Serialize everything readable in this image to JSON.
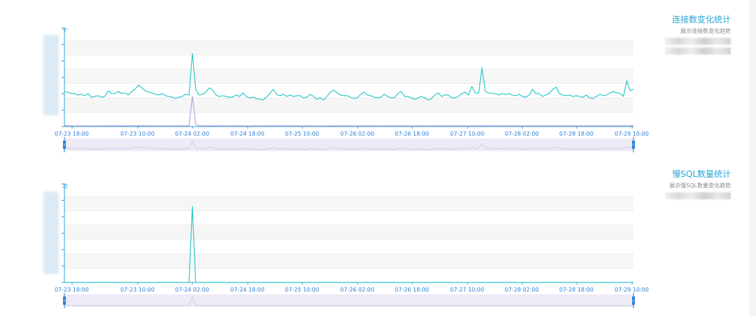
{
  "panels": [
    {
      "legend": {
        "title": "连接数变化统计",
        "subtitle": "展示连接数变化趋势"
      },
      "unit": "个",
      "series_colors": [
        "#2ec7c9",
        "#b6a2de"
      ],
      "x_tick_labels": [
        "07-23 18:00",
        "07-23 10:00",
        "07-24 02:00",
        "07-24 18:00",
        "07-25 10:00",
        "07-26 02:00",
        "07-26 18:00",
        "07-27 10:00",
        "07-28 02:00",
        "07-28 18:00",
        "07-29 10:00"
      ]
    },
    {
      "legend": {
        "title": "慢SQL数量统计",
        "subtitle": "展示慢SQL数量变化趋势"
      },
      "unit": "次",
      "series_colors": [
        "#2ec7c9"
      ],
      "x_tick_labels": [
        "07-23 18:00",
        "07-23 10:00",
        "07-24 02:00",
        "07-24 18:00",
        "07-25 10:00",
        "07-26 02:00",
        "07-26 18:00",
        "07-27 10:00",
        "07-28 02:00",
        "07-28 18:00",
        "07-29 10:00"
      ]
    }
  ],
  "chart_data": [
    {
      "type": "line",
      "title": "连接数变化统计",
      "ylabel": "个",
      "x_ticks": [
        "07-23 18:00",
        "07-23 10:00",
        "07-24 02:00",
        "07-24 18:00",
        "07-25 10:00",
        "07-26 02:00",
        "07-26 18:00",
        "07-27 10:00",
        "07-28 02:00",
        "07-28 18:00",
        "07-29 10:00"
      ],
      "ylim": [
        0,
        6
      ],
      "grid": true,
      "series": [
        {
          "values": [
            2.45,
            2.4,
            2.3,
            2.3,
            2.2,
            2.25,
            2.15,
            2.3,
            2.05,
            2.1,
            2.15,
            2.05,
            2.1,
            2.5,
            2.3,
            2.3,
            2.45,
            2.3,
            2.35,
            2.2,
            2.45,
            2.6,
            2.9,
            2.7,
            2.5,
            2.4,
            2.35,
            2.25,
            2.2,
            2.3,
            2.15,
            2.1,
            2.05,
            1.95,
            2.05,
            2.1,
            2.25,
            2.2,
            5.1,
            2.6,
            2.2,
            2.25,
            2.4,
            2.7,
            2.55,
            2.2,
            2.1,
            2.15,
            2.1,
            2.05,
            2.05,
            2.2,
            2.1,
            2.35,
            2.1,
            2.0,
            2.05,
            1.95,
            1.9,
            1.85,
            2.05,
            2.3,
            2.6,
            2.25,
            2.15,
            2.25,
            2.1,
            2.2,
            2.1,
            2.15,
            2.15,
            2.0,
            2.05,
            2.25,
            2.1,
            1.9,
            2.0,
            1.85,
            2.1,
            2.4,
            2.55,
            2.35,
            2.2,
            2.15,
            2.15,
            2.05,
            1.95,
            2.0,
            2.25,
            2.4,
            2.2,
            2.15,
            2.05,
            2.0,
            2.05,
            2.25,
            2.1,
            2.0,
            2.0,
            2.3,
            2.45,
            2.1,
            2.1,
            2.0,
            1.9,
            2.0,
            2.1,
            2.0,
            1.85,
            1.95,
            2.2,
            2.35,
            2.1,
            2.2,
            2.2,
            2.0,
            2.0,
            2.1,
            2.3,
            2.4,
            2.2,
            2.8,
            2.35,
            2.3,
            4.1,
            2.45,
            2.35,
            2.3,
            2.3,
            2.2,
            2.3,
            2.25,
            2.3,
            2.2,
            2.15,
            2.25,
            2.1,
            2.05,
            2.2,
            2.6,
            2.3,
            2.3,
            2.1,
            2.2,
            2.3,
            2.6,
            2.75,
            2.3,
            2.2,
            2.15,
            2.2,
            2.1,
            2.15,
            2.1,
            2.05,
            2.2,
            2.0,
            1.95,
            2.1,
            2.25,
            2.15,
            2.2,
            2.35,
            2.45,
            2.35,
            2.3,
            2.1,
            3.2,
            2.5,
            2.6
          ]
        },
        {
          "values": [
            0.08,
            0.05,
            0.05,
            0.04,
            0.05,
            0.04,
            0.05,
            0.05,
            0.04,
            0.05,
            0.05,
            0.04,
            0.05,
            0.05,
            0.06,
            0.05,
            0.05,
            0.05,
            0.06,
            0.05,
            0.06,
            0.06,
            0.06,
            0.05,
            0.05,
            0.05,
            0.05,
            0.05,
            0.04,
            0.05,
            0.05,
            0.04,
            0.05,
            0.05,
            0.05,
            0.05,
            0.05,
            0.06,
            2.1,
            0.15,
            0.06,
            0.05,
            0.05,
            0.05,
            0.06,
            0.05,
            0.05,
            0.05,
            0.04,
            0.05,
            0.05,
            0.05,
            0.05,
            0.05,
            0.05,
            0.04,
            0.05,
            0.05,
            0.05,
            0.04,
            0.05,
            0.05,
            0.06,
            0.05,
            0.05,
            0.05,
            0.05,
            0.05,
            0.05,
            0.05,
            0.05,
            0.04,
            0.05,
            0.05,
            0.05,
            0.04,
            0.05,
            0.04,
            0.05,
            0.05,
            0.06,
            0.05,
            0.05,
            0.05,
            0.05,
            0.05,
            0.04,
            0.05,
            0.05,
            0.05,
            0.05,
            0.05,
            0.05,
            0.04,
            0.05,
            0.05,
            0.05,
            0.05,
            0.05,
            0.05,
            0.05,
            0.05,
            0.05,
            0.05,
            0.04,
            0.05,
            0.05,
            0.05,
            0.04,
            0.05,
            0.05,
            0.05,
            0.05,
            0.05,
            0.05,
            0.05,
            0.05,
            0.05,
            0.05,
            0.05,
            0.05,
            0.05,
            0.05,
            0.05,
            0.06,
            0.05,
            0.05,
            0.05,
            0.05,
            0.05,
            0.05,
            0.05,
            0.05,
            0.05,
            0.05,
            0.05,
            0.05,
            0.05,
            0.05,
            0.05,
            0.05,
            0.05,
            0.05,
            0.05,
            0.05,
            0.05,
            0.05,
            0.05,
            0.05,
            0.05,
            0.05,
            0.05,
            0.05,
            0.05,
            0.05,
            0.05,
            0.05,
            0.05,
            0.05,
            0.05,
            0.05,
            0.05,
            0.05,
            0.05,
            0.05,
            0.05,
            0.05,
            0.05,
            0.05,
            0.05
          ]
        }
      ]
    },
    {
      "type": "line",
      "title": "慢SQL数量统计",
      "ylabel": "次",
      "x_ticks": [
        "07-23 18:00",
        "07-23 10:00",
        "07-24 02:00",
        "07-24 18:00",
        "07-25 10:00",
        "07-26 02:00",
        "07-26 18:00",
        "07-27 10:00",
        "07-28 02:00",
        "07-28 18:00",
        "07-29 10:00"
      ],
      "ylim": [
        0,
        6
      ],
      "grid": true,
      "series": [
        {
          "values": [
            0,
            0,
            0,
            0,
            0,
            0,
            0,
            0,
            0,
            0,
            0,
            0,
            0,
            0,
            0,
            0,
            0,
            0,
            0,
            0,
            0,
            0,
            0,
            0,
            0,
            0,
            0,
            0,
            0,
            0,
            0,
            0,
            0,
            0,
            0,
            0,
            0,
            0,
            5.3,
            0,
            0,
            0,
            0,
            0,
            0,
            0,
            0,
            0,
            0,
            0,
            0,
            0,
            0,
            0,
            0,
            0,
            0,
            0,
            0,
            0,
            0,
            0,
            0,
            0,
            0,
            0,
            0,
            0,
            0,
            0,
            0,
            0,
            0,
            0,
            0,
            0,
            0,
            0,
            0,
            0,
            0,
            0,
            0,
            0,
            0,
            0,
            0,
            0,
            0,
            0,
            0,
            0,
            0,
            0,
            0,
            0,
            0,
            0,
            0,
            0,
            0,
            0,
            0,
            0,
            0,
            0,
            0,
            0,
            0,
            0,
            0,
            0,
            0,
            0,
            0,
            0,
            0,
            0,
            0,
            0,
            0,
            0,
            0,
            0,
            0,
            0,
            0,
            0,
            0,
            0,
            0,
            0,
            0,
            0,
            0,
            0,
            0,
            0,
            0,
            0,
            0,
            0,
            0,
            0,
            0,
            0,
            0,
            0,
            0,
            0,
            0,
            0,
            0,
            0,
            0,
            0,
            0,
            0,
            0,
            0,
            0,
            0,
            0,
            0,
            0,
            0,
            0,
            0,
            0,
            0
          ]
        }
      ]
    }
  ]
}
